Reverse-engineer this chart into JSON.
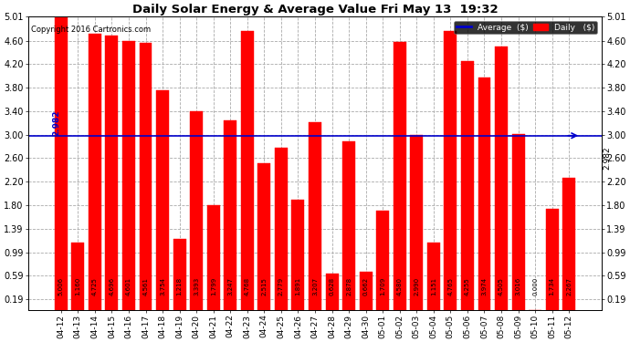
{
  "title": "Daily Solar Energy & Average Value Fri May 13  19:32",
  "copyright": "Copyright 2016 Cartronics.com",
  "average_value": 2.982,
  "average_label": "2.982",
  "categories": [
    "04-12",
    "04-13",
    "04-14",
    "04-15",
    "04-16",
    "04-17",
    "04-18",
    "04-19",
    "04-20",
    "04-21",
    "04-22",
    "04-23",
    "04-24",
    "04-25",
    "04-26",
    "04-27",
    "04-28",
    "04-29",
    "04-30",
    "05-01",
    "05-02",
    "05-03",
    "05-04",
    "05-05",
    "05-06",
    "05-07",
    "05-08",
    "05-09",
    "05-10",
    "05-11",
    "05-12"
  ],
  "values": [
    5.006,
    1.16,
    4.725,
    4.696,
    4.601,
    4.561,
    3.754,
    1.218,
    3.393,
    1.799,
    3.247,
    4.768,
    2.515,
    2.779,
    1.891,
    3.207,
    0.628,
    2.878,
    0.662,
    1.709,
    4.58,
    2.99,
    1.151,
    4.765,
    4.255,
    3.974,
    4.505,
    3.016,
    0.0,
    1.734,
    2.267
  ],
  "bar_color": "#ff0000",
  "average_line_color": "#0000cc",
  "background_color": "#ffffff",
  "grid_color": "#aaaaaa",
  "ylim": [
    0.0,
    5.01
  ],
  "yticks": [
    0.19,
    0.59,
    0.99,
    1.39,
    1.8,
    2.2,
    2.6,
    3.0,
    3.4,
    3.8,
    4.2,
    4.6,
    5.01
  ],
  "legend_avg_color": "#0000cc",
  "legend_daily_color": "#ff0000",
  "legend_bg_color": "#000000",
  "legend_text_color": "#ffffff"
}
